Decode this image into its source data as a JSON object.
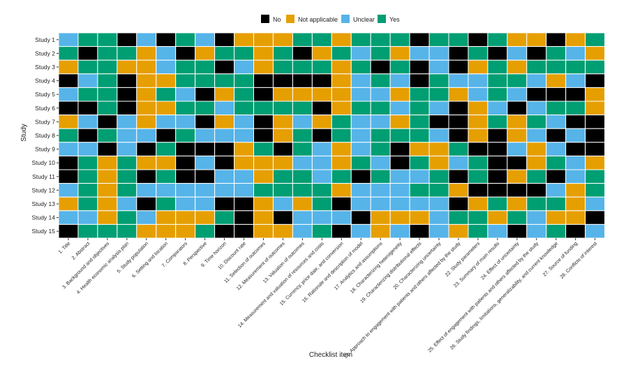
{
  "chart_data": {
    "type": "heatmap",
    "xlabel": "Checklist item",
    "ylabel": "Study",
    "legend": {
      "placement": "top",
      "entries": [
        {
          "name": "No",
          "color": "#000000"
        },
        {
          "name": "Not applicable",
          "color": "#E69F00"
        },
        {
          "name": "Unclear",
          "color": "#56B4E9"
        },
        {
          "name": "Yes",
          "color": "#009E73"
        }
      ]
    },
    "rows": [
      "Study 1",
      "Study 2",
      "Study 3",
      "Study 4",
      "Study 5",
      "Study 6",
      "Study 7",
      "Study 8",
      "Study 9",
      "Study 10",
      "Study 11",
      "Study 12",
      "Study 13",
      "Study 14",
      "Study 15"
    ],
    "columns": [
      "1. Title",
      "2. Abstract",
      "3. Background and objectives",
      "4. Health economic analysis plan",
      "5. Study population",
      "6. Setting and location",
      "7. Comparators",
      "8. Perspective",
      "9. Time horizon",
      "10. Discount rate",
      "11. Selection of outcomes",
      "12. Measurement of outcomes",
      "13. Valuation of outcomes",
      "14. Measurement and valuation of resources and costs",
      "15. Currency, price date, and conversion",
      "16. Rationale and description of model",
      "17. Analytics and assumptions",
      "18. Characterizing heterogeneity",
      "19. Characterizing distributional effects",
      "20. Characterizing uncertainty",
      "21. Approach to engagement with patients and others affected by the study",
      "22. Study parameters",
      "23. Summary of main results",
      "24. Effect of uncertainty",
      "25. Effect of engagement with patients and others affected by the study",
      "26. Study findings, limitations, generalizability, and current knowledge",
      "27. Source of funding",
      "28. Conflicts of interest"
    ],
    "codes": {
      "N": "No",
      "A": "Not applicable",
      "U": "Unclear",
      "Y": "Yes"
    },
    "values": [
      "UYYNUNYUNAAAYYAYYYNYYNYAANAY",
      "YNYYAUNAYYAYNAYUYAUUNYNUNYUA",
      "AYYAAUYYNUAYYYAYNYNUNAYAYYYY",
      "NUYNAAYYYYNNNNAUYUNYUUYYUAUN",
      "UYYNAYUNAYNAAAAUUAYYAUYUNNNA",
      "NNYNAAYYUYYYYNAYYUYUNAUNUYYA",
      "AUNUAUUNAUNAUAYUUAYNNAYAYUNN",
      "YNYUUNYUUUNAYNYUYYYUNANAUNUN",
      "UUNUNYNNNAYNYUAUYNAAYNNUAUNN",
      "NYAYAANUNAAAUUAYUNYAUYNNAYUA",
      "NYAYNYNNUUAYYUYNYUUYNYNAYNUY",
      "UYAYUUUUUUYYYYAUUUYYANNNNUAY",
      "AYAUNYUUNNAUAYNUUUUUNAYAYYAU",
      "UUAYUAAAYNANUUUNAAAUYYAYUAAN",
      "NYYYAAAYNNAAUYNUAUNUAYUNUYNU"
    ]
  }
}
